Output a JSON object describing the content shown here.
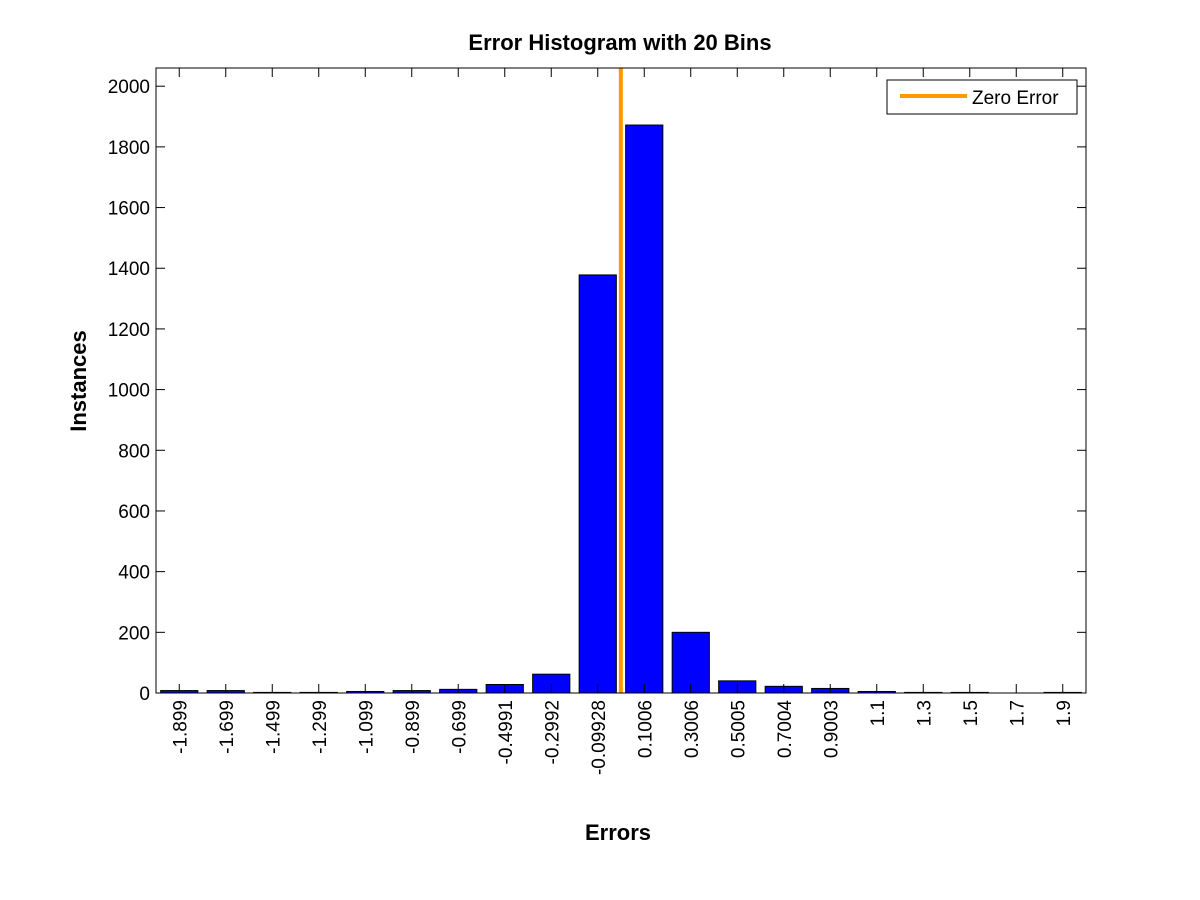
{
  "chart_data": {
    "type": "bar",
    "title": "Error Histogram with 20 Bins",
    "xlabel": "Errors",
    "ylabel": "Instances",
    "categories": [
      "-1.899",
      "-1.699",
      "-1.499",
      "-1.299",
      "-1.099",
      "-0.899",
      "-0.699",
      "-0.4991",
      "-0.2992",
      "-0.09928",
      "0.1006",
      "0.3006",
      "0.5005",
      "0.7004",
      "0.9003",
      "1.1",
      "1.3",
      "1.5",
      "1.7",
      "1.9"
    ],
    "values": [
      8,
      8,
      2,
      2,
      5,
      8,
      12,
      28,
      62,
      1378,
      1872,
      200,
      40,
      22,
      15,
      5,
      2,
      2,
      0,
      2
    ],
    "ylim": [
      0,
      2060
    ],
    "yticks": [
      "0",
      "200",
      "400",
      "600",
      "800",
      "1000",
      "1200",
      "1400",
      "1600",
      "1800",
      "2000"
    ],
    "zero_error_x": 0,
    "legend": {
      "label": "Zero Error",
      "placement": "top-right"
    },
    "colors": {
      "bar": "#0000ff",
      "bar_edge": "#000000",
      "zero_line": "#ff9900"
    },
    "grid": false
  }
}
